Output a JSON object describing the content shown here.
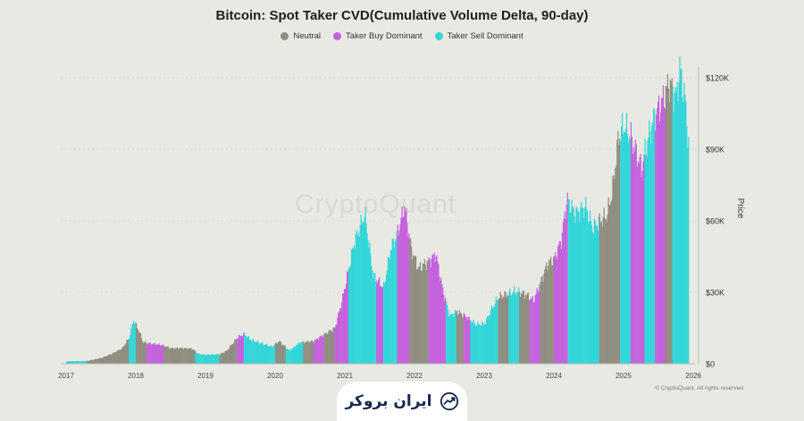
{
  "chart_data": {
    "type": "area",
    "title": "Bitcoin: Spot Taker CVD(Cumulative Volume Delta, 90-day)",
    "ylabel": "Price",
    "xlabel": "",
    "xlim": [
      2017,
      2026
    ],
    "ylim": [
      0,
      130000
    ],
    "y_ticks": [
      0,
      30000,
      60000,
      90000,
      120000
    ],
    "y_tick_labels": [
      "$0",
      "$30K",
      "$60K",
      "$90K",
      "$120K"
    ],
    "x_tick_labels": [
      "2017",
      "2018",
      "2019",
      "2020",
      "2021",
      "2022",
      "2023",
      "2024",
      "2025",
      "2026"
    ],
    "legend": [
      {
        "name": "Neutral",
        "color": "#8f8e80"
      },
      {
        "name": "Taker Buy Dominant",
        "color": "#c462dd"
      },
      {
        "name": "Taker Sell Dominant",
        "color": "#33d6d8"
      }
    ],
    "price_points": [
      [
        2017.0,
        1000
      ],
      [
        2017.3,
        1200
      ],
      [
        2017.5,
        2500
      ],
      [
        2017.65,
        4200
      ],
      [
        2017.8,
        6500
      ],
      [
        2017.9,
        11000
      ],
      [
        2017.96,
        18500
      ],
      [
        2018.05,
        13000
      ],
      [
        2018.1,
        9000
      ],
      [
        2018.2,
        8500
      ],
      [
        2018.35,
        8000
      ],
      [
        2018.5,
        6500
      ],
      [
        2018.65,
        6600
      ],
      [
        2018.8,
        6400
      ],
      [
        2018.9,
        4000
      ],
      [
        2019.0,
        3800
      ],
      [
        2019.2,
        4000
      ],
      [
        2019.3,
        5500
      ],
      [
        2019.45,
        11000
      ],
      [
        2019.55,
        12500
      ],
      [
        2019.65,
        10000
      ],
      [
        2019.8,
        8500
      ],
      [
        2019.95,
        7200
      ],
      [
        2020.05,
        9500
      ],
      [
        2020.2,
        5500
      ],
      [
        2020.35,
        9000
      ],
      [
        2020.55,
        9500
      ],
      [
        2020.65,
        11500
      ],
      [
        2020.85,
        15000
      ],
      [
        2020.95,
        26000
      ],
      [
        2021.05,
        40000
      ],
      [
        2021.12,
        50000
      ],
      [
        2021.28,
        63000
      ],
      [
        2021.4,
        37000
      ],
      [
        2021.55,
        32000
      ],
      [
        2021.65,
        48000
      ],
      [
        2021.75,
        55000
      ],
      [
        2021.85,
        66000
      ],
      [
        2021.95,
        48000
      ],
      [
        2022.05,
        40000
      ],
      [
        2022.2,
        43000
      ],
      [
        2022.3,
        46000
      ],
      [
        2022.4,
        31000
      ],
      [
        2022.5,
        20000
      ],
      [
        2022.6,
        22000
      ],
      [
        2022.75,
        19500
      ],
      [
        2022.87,
        16500
      ],
      [
        2023.0,
        16800
      ],
      [
        2023.1,
        23000
      ],
      [
        2023.2,
        28000
      ],
      [
        2023.35,
        29500
      ],
      [
        2023.45,
        30500
      ],
      [
        2023.6,
        29000
      ],
      [
        2023.7,
        26500
      ],
      [
        2023.8,
        34000
      ],
      [
        2023.9,
        42000
      ],
      [
        2024.0,
        44000
      ],
      [
        2024.1,
        52000
      ],
      [
        2024.18,
        69000
      ],
      [
        2024.3,
        63000
      ],
      [
        2024.45,
        66000
      ],
      [
        2024.55,
        57000
      ],
      [
        2024.65,
        60000
      ],
      [
        2024.75,
        62000
      ],
      [
        2024.83,
        72000
      ],
      [
        2024.92,
        95000
      ],
      [
        2025.0,
        100000
      ],
      [
        2025.1,
        95000
      ],
      [
        2025.25,
        82000
      ],
      [
        2025.35,
        95000
      ],
      [
        2025.45,
        105000
      ],
      [
        2025.55,
        110000
      ],
      [
        2025.65,
        118000
      ],
      [
        2025.75,
        112000
      ],
      [
        2025.8,
        124000
      ],
      [
        2025.88,
        110000
      ],
      [
        2025.93,
        90000
      ]
    ],
    "regimes": [
      {
        "from": 2017.0,
        "to": 2017.3,
        "state": "Taker Sell Dominant"
      },
      {
        "from": 2017.3,
        "to": 2017.9,
        "state": "Neutral"
      },
      {
        "from": 2017.9,
        "to": 2018.0,
        "state": "Taker Sell Dominant"
      },
      {
        "from": 2018.0,
        "to": 2018.15,
        "state": "Neutral"
      },
      {
        "from": 2018.15,
        "to": 2018.4,
        "state": "Taker Buy Dominant"
      },
      {
        "from": 2018.4,
        "to": 2018.85,
        "state": "Neutral"
      },
      {
        "from": 2018.85,
        "to": 2019.2,
        "state": "Taker Sell Dominant"
      },
      {
        "from": 2019.2,
        "to": 2019.45,
        "state": "Neutral"
      },
      {
        "from": 2019.45,
        "to": 2019.55,
        "state": "Taker Buy Dominant"
      },
      {
        "from": 2019.55,
        "to": 2020.0,
        "state": "Taker Sell Dominant"
      },
      {
        "from": 2020.0,
        "to": 2020.15,
        "state": "Neutral"
      },
      {
        "from": 2020.15,
        "to": 2020.4,
        "state": "Taker Sell Dominant"
      },
      {
        "from": 2020.4,
        "to": 2020.55,
        "state": "Neutral"
      },
      {
        "from": 2020.55,
        "to": 2020.7,
        "state": "Taker Buy Dominant"
      },
      {
        "from": 2020.7,
        "to": 2020.85,
        "state": "Neutral"
      },
      {
        "from": 2020.85,
        "to": 2021.05,
        "state": "Taker Buy Dominant"
      },
      {
        "from": 2021.05,
        "to": 2021.45,
        "state": "Taker Sell Dominant"
      },
      {
        "from": 2021.45,
        "to": 2021.55,
        "state": "Taker Buy Dominant"
      },
      {
        "from": 2021.55,
        "to": 2021.75,
        "state": "Taker Sell Dominant"
      },
      {
        "from": 2021.75,
        "to": 2021.92,
        "state": "Taker Buy Dominant"
      },
      {
        "from": 2021.92,
        "to": 2022.2,
        "state": "Neutral"
      },
      {
        "from": 2022.2,
        "to": 2022.45,
        "state": "Taker Buy Dominant"
      },
      {
        "from": 2022.45,
        "to": 2022.6,
        "state": "Taker Sell Dominant"
      },
      {
        "from": 2022.6,
        "to": 2022.7,
        "state": "Neutral"
      },
      {
        "from": 2022.7,
        "to": 2022.8,
        "state": "Taker Buy Dominant"
      },
      {
        "from": 2022.8,
        "to": 2023.2,
        "state": "Taker Sell Dominant"
      },
      {
        "from": 2023.2,
        "to": 2023.35,
        "state": "Neutral"
      },
      {
        "from": 2023.35,
        "to": 2023.5,
        "state": "Taker Sell Dominant"
      },
      {
        "from": 2023.5,
        "to": 2023.65,
        "state": "Neutral"
      },
      {
        "from": 2023.65,
        "to": 2023.8,
        "state": "Taker Buy Dominant"
      },
      {
        "from": 2023.8,
        "to": 2024.0,
        "state": "Neutral"
      },
      {
        "from": 2024.0,
        "to": 2024.2,
        "state": "Taker Buy Dominant"
      },
      {
        "from": 2024.2,
        "to": 2024.65,
        "state": "Taker Sell Dominant"
      },
      {
        "from": 2024.65,
        "to": 2024.95,
        "state": "Neutral"
      },
      {
        "from": 2024.95,
        "to": 2025.1,
        "state": "Taker Sell Dominant"
      },
      {
        "from": 2025.1,
        "to": 2025.3,
        "state": "Taker Buy Dominant"
      },
      {
        "from": 2025.3,
        "to": 2025.45,
        "state": "Taker Sell Dominant"
      },
      {
        "from": 2025.45,
        "to": 2025.6,
        "state": "Taker Buy Dominant"
      },
      {
        "from": 2025.6,
        "to": 2025.7,
        "state": "Neutral"
      },
      {
        "from": 2025.7,
        "to": 2025.93,
        "state": "Taker Sell Dominant"
      }
    ]
  },
  "watermark": "CryptoQuant",
  "copyright": "© CryptoQuant. All rights reserved",
  "brand": {
    "name": "ایران بروکر",
    "icon": "trend-arrow-icon"
  }
}
